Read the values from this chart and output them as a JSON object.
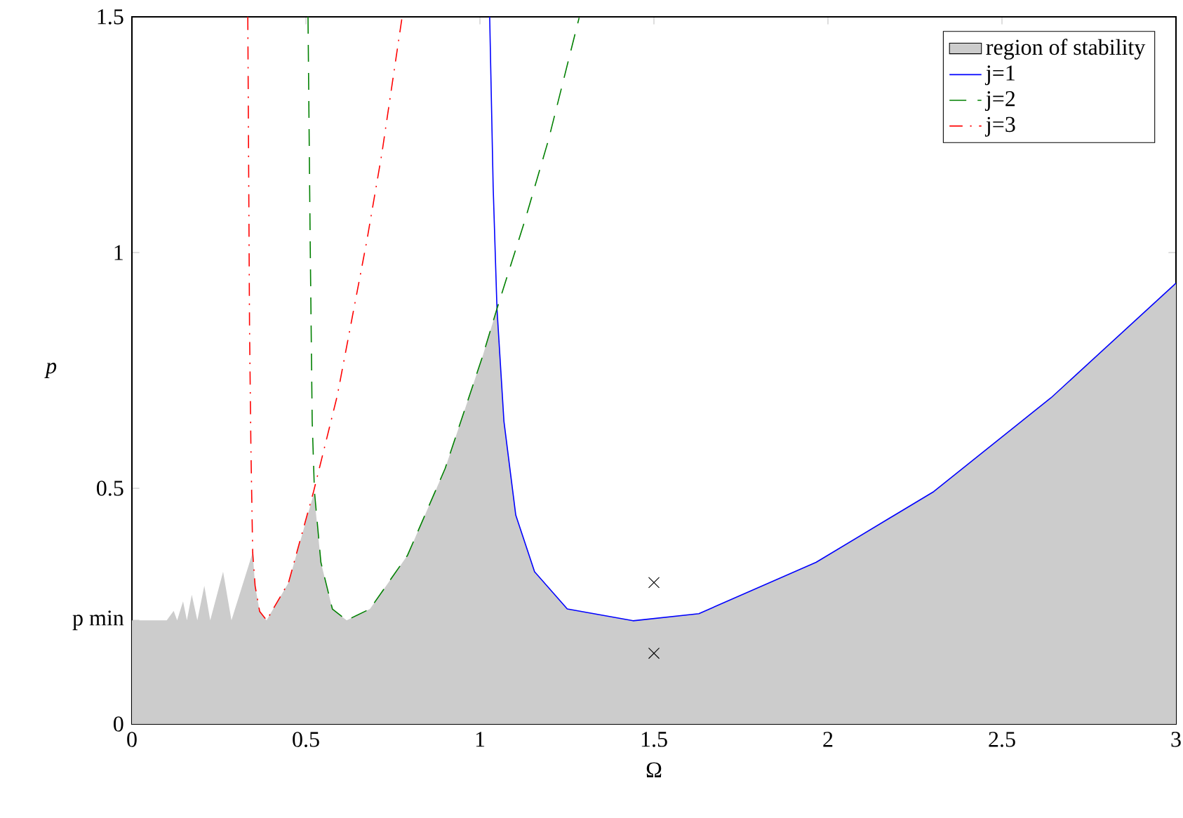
{
  "chart_data": {
    "type": "line",
    "xlabel": "Ω",
    "ylabel": "p",
    "xlim": [
      0,
      3
    ],
    "ylim": [
      0,
      1.5
    ],
    "xticks": [
      0,
      0.5,
      1,
      1.5,
      2,
      2.5,
      3
    ],
    "yticks": [
      0,
      {
        "value": 0.22,
        "label": "p min"
      },
      0.5,
      1,
      1.5
    ],
    "legend": "top right",
    "series": [
      {
        "name": "region of stability",
        "type": "area",
        "color": "#cccccc",
        "x": [
          0,
          0.1,
          0.12,
          0.13,
          0.147,
          0.158,
          0.172,
          0.188,
          0.208,
          0.225,
          0.262,
          0.286,
          0.347,
          0.354,
          0.367,
          0.387,
          0.45,
          0.523,
          0.543,
          0.576,
          0.617,
          0.684,
          0.792,
          0.9,
          1.008,
          1.049,
          1.069,
          1.103,
          1.157,
          1.251,
          1.44,
          1.629,
          1.966,
          2.304,
          2.641,
          3
        ],
        "values": [
          0.22,
          0.22,
          0.24,
          0.22,
          0.26,
          0.22,
          0.274,
          0.22,
          0.293,
          0.22,
          0.323,
          0.22,
          0.364,
          0.293,
          0.239,
          0.22,
          0.3,
          0.49,
          0.343,
          0.244,
          0.22,
          0.244,
          0.358,
          0.542,
          0.781,
          0.881,
          0.642,
          0.443,
          0.323,
          0.244,
          0.219,
          0.234,
          0.343,
          0.493,
          0.692,
          0.935
        ]
      },
      {
        "name": "j=1",
        "color": "#0000ff",
        "line_style": "solid",
        "x": [
          1.028,
          1.038,
          1.049,
          1.069,
          1.103,
          1.157,
          1.251,
          1.44,
          1.629,
          1.966,
          2.304,
          2.641,
          3
        ],
        "values": [
          1.5,
          1.139,
          0.881,
          0.642,
          0.443,
          0.323,
          0.244,
          0.219,
          0.234,
          0.343,
          0.493,
          0.692,
          0.935
        ]
      },
      {
        "name": "j=2",
        "color": "#008000",
        "line_style": "dashed",
        "x": [
          0.506,
          0.512,
          0.518,
          0.5245,
          0.543,
          0.576,
          0.617,
          0.684,
          0.792,
          0.9,
          1.008,
          1.049,
          1.13,
          1.197,
          1.285
        ],
        "values": [
          1.5,
          1.04,
          0.642,
          0.493,
          0.343,
          0.244,
          0.22,
          0.244,
          0.358,
          0.542,
          0.781,
          0.881,
          1.07,
          1.239,
          1.498
        ]
      },
      {
        "name": "j=3",
        "color": "#ff0000",
        "line_style": "dashdot",
        "x": [
          0.333,
          0.338,
          0.342,
          0.347,
          0.354,
          0.367,
          0.387,
          0.45,
          0.522,
          0.59,
          0.675,
          0.718,
          0.776
        ],
        "values": [
          1.5,
          0.84,
          0.582,
          0.364,
          0.293,
          0.239,
          0.22,
          0.3,
          0.493,
          0.696,
          1.025,
          1.209,
          1.498
        ]
      },
      {
        "type": "scatter",
        "color": "#000000",
        "marker": "cross",
        "x": [
          1.5,
          1.5
        ],
        "values": [
          0.3,
          0.15
        ]
      }
    ]
  }
}
